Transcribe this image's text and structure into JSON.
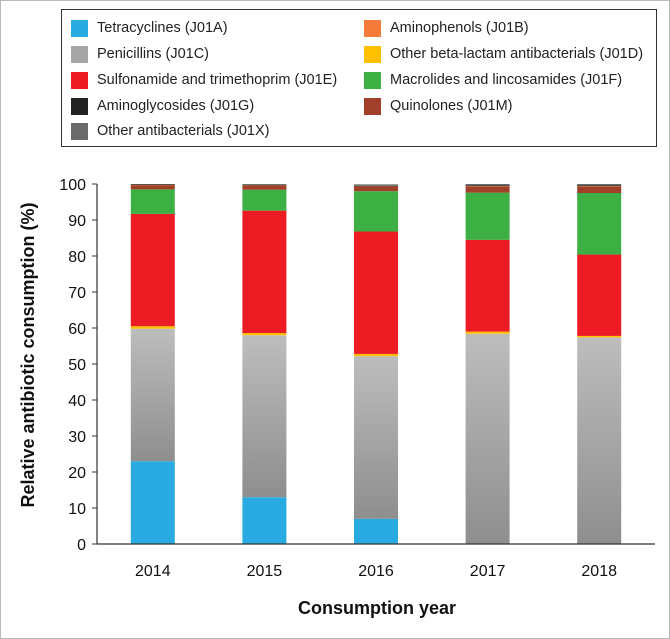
{
  "chart_data": {
    "type": "bar",
    "stacked": true,
    "xlabel": "Consumption year",
    "ylabel": "Relative antibiotic consumption (%)",
    "ylim": [
      0,
      100
    ],
    "yticks": [
      0,
      10,
      20,
      30,
      40,
      50,
      60,
      70,
      80,
      90,
      100
    ],
    "categories": [
      "2014",
      "2015",
      "2016",
      "2017",
      "2018"
    ],
    "series": [
      {
        "code": "J01A",
        "name": "Tetracyclines (J01A)",
        "color": "#29ABE2",
        "values": [
          23,
          13,
          7,
          0,
          0
        ]
      },
      {
        "code": "J01C",
        "name": "Penicillins (J01C)",
        "color": "#A6A6A6",
        "values": [
          36.8,
          45,
          45.2,
          58.4,
          57.4
        ]
      },
      {
        "code": "J01D",
        "name": "Other beta-lactam antibacterials (J01D)",
        "color": "#FFC000",
        "values": [
          0.7,
          0.6,
          0.6,
          0.6,
          0.4
        ]
      },
      {
        "code": "J01E",
        "name": "Sulfonamide and trimethoprim (J01E)",
        "color": "#ED1C24",
        "values": [
          31.2,
          34,
          34,
          25.5,
          22.6
        ]
      },
      {
        "code": "J01F",
        "name": "Macrolides and lincosamides (J01F)",
        "color": "#3CB043",
        "values": [
          6.8,
          5.8,
          11.2,
          13.1,
          17.1
        ]
      },
      {
        "code": "J01M",
        "name": "Quinolones (J01M)",
        "color": "#A0402A",
        "values": [
          1.2,
          1.1,
          1.3,
          1.7,
          1.8
        ]
      },
      {
        "code": "J01B",
        "name": "Aminophenols (J01B)",
        "color": "#F47B3A",
        "values": [
          0.1,
          0.1,
          0.1,
          0.1,
          0.1
        ]
      },
      {
        "code": "J01G",
        "name": "Aminoglycosides (J01G)",
        "color": "#222222",
        "values": [
          0.1,
          0.2,
          0.1,
          0.2,
          0.2
        ]
      },
      {
        "code": "J01X",
        "name": "Other antibacterials (J01X)",
        "color": "#6B6B6B",
        "values": [
          0.1,
          0.2,
          0.4,
          0.4,
          0.4
        ]
      }
    ]
  },
  "legend_left": [
    {
      "label": "Tetracyclines (J01A)",
      "color": "#29ABE2"
    },
    {
      "label": "Penicillins (J01C)",
      "color": "#A6A6A6"
    },
    {
      "label": "Sulfonamide and trimethoprim (J01E)",
      "color": "#ED1C24"
    },
    {
      "label": "Aminoglycosides (J01G)",
      "color": "#222222"
    },
    {
      "label": "Other antibacterials (J01X)",
      "color": "#6B6B6B"
    }
  ],
  "legend_right": [
    {
      "label": "Aminophenols (J01B)",
      "color": "#F47B3A"
    },
    {
      "label": "Other beta-lactam antibacterials (J01D)",
      "color": "#FFC000"
    },
    {
      "label": "Macrolides and lincosamides (J01F)",
      "color": "#3CB043"
    },
    {
      "label": "Quinolones (J01M)",
      "color": "#A0402A"
    }
  ]
}
